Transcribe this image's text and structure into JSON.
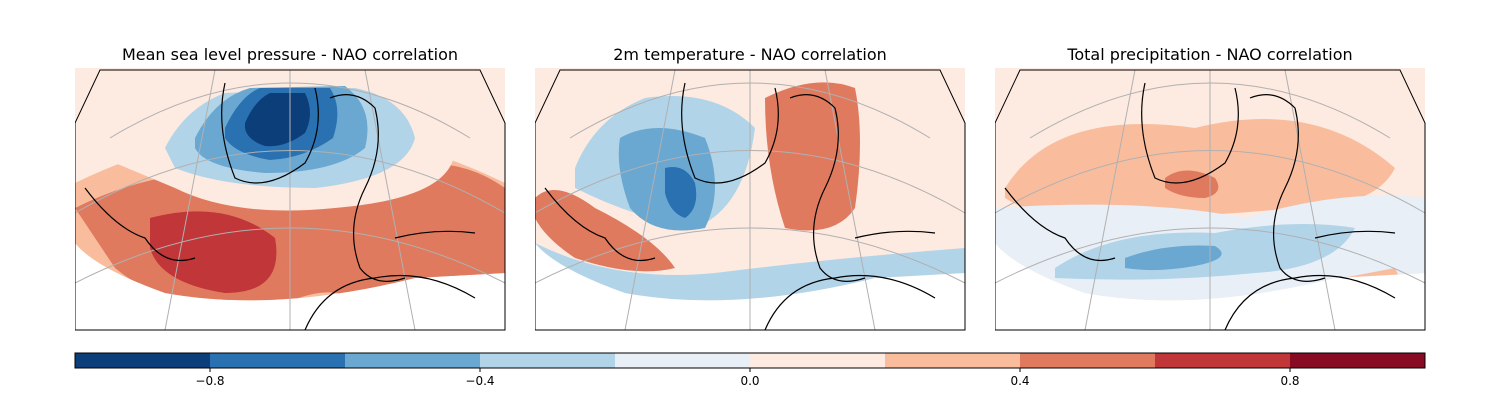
{
  "panels": [
    {
      "title": "Mean sea level pressure - NAO correlation",
      "pattern": [
        {
          "value": 0.3,
          "shape": "wide"
        },
        {
          "value": 0.5,
          "shape": "band"
        },
        {
          "value": 0.7,
          "shape": "core-south"
        },
        {
          "value": 0.1,
          "shape": "ring-north"
        },
        {
          "value": -0.3,
          "shape": "north-broad"
        },
        {
          "value": -0.5,
          "shape": "north-mid"
        },
        {
          "value": -0.7,
          "shape": "north-core"
        },
        {
          "value": -0.9,
          "shape": "north-center"
        }
      ]
    },
    {
      "title": "2m temperature - NAO correlation",
      "pattern": [
        {
          "value": 0.1,
          "shape": "wide"
        },
        {
          "value": 0.5,
          "shape": "europe"
        },
        {
          "value": -0.3,
          "shape": "greenland"
        },
        {
          "value": -0.5,
          "shape": "labrador"
        },
        {
          "value": -0.7,
          "shape": "labrador-core"
        },
        {
          "value": 0.5,
          "shape": "subtropics-west"
        },
        {
          "value": -0.3,
          "shape": "south-band"
        }
      ]
    },
    {
      "title": "Total precipitation - NAO correlation",
      "pattern": [
        {
          "value": 0.1,
          "shape": "wide"
        },
        {
          "value": 0.3,
          "shape": "north-band"
        },
        {
          "value": 0.5,
          "shape": "iceland"
        },
        {
          "value": -0.1,
          "shape": "south-wide"
        },
        {
          "value": -0.3,
          "shape": "iberia-band"
        },
        {
          "value": -0.5,
          "shape": "iberia-core"
        },
        {
          "value": 0.3,
          "shape": "africa"
        }
      ]
    }
  ],
  "colorbar": {
    "min": -1.0,
    "max": 1.0,
    "boundaries": [
      -1.0,
      -0.8,
      -0.6,
      -0.4,
      -0.2,
      0.0,
      0.2,
      0.4,
      0.6,
      0.8,
      1.0
    ],
    "colors": [
      "#0c3f7a",
      "#2a71b2",
      "#6aa8d2",
      "#b2d4e8",
      "#e8eff6",
      "#fdeae0",
      "#f9bd9e",
      "#e07a5f",
      "#c13639",
      "#870b22"
    ],
    "tick_values": [
      -0.8,
      -0.4,
      0.0,
      0.4,
      0.8
    ],
    "tick_labels": [
      "−0.8",
      "−0.4",
      "0.0",
      "0.4",
      "0.8"
    ]
  },
  "gridline_color": "#b0b0b0",
  "coastline_color": "#000000"
}
